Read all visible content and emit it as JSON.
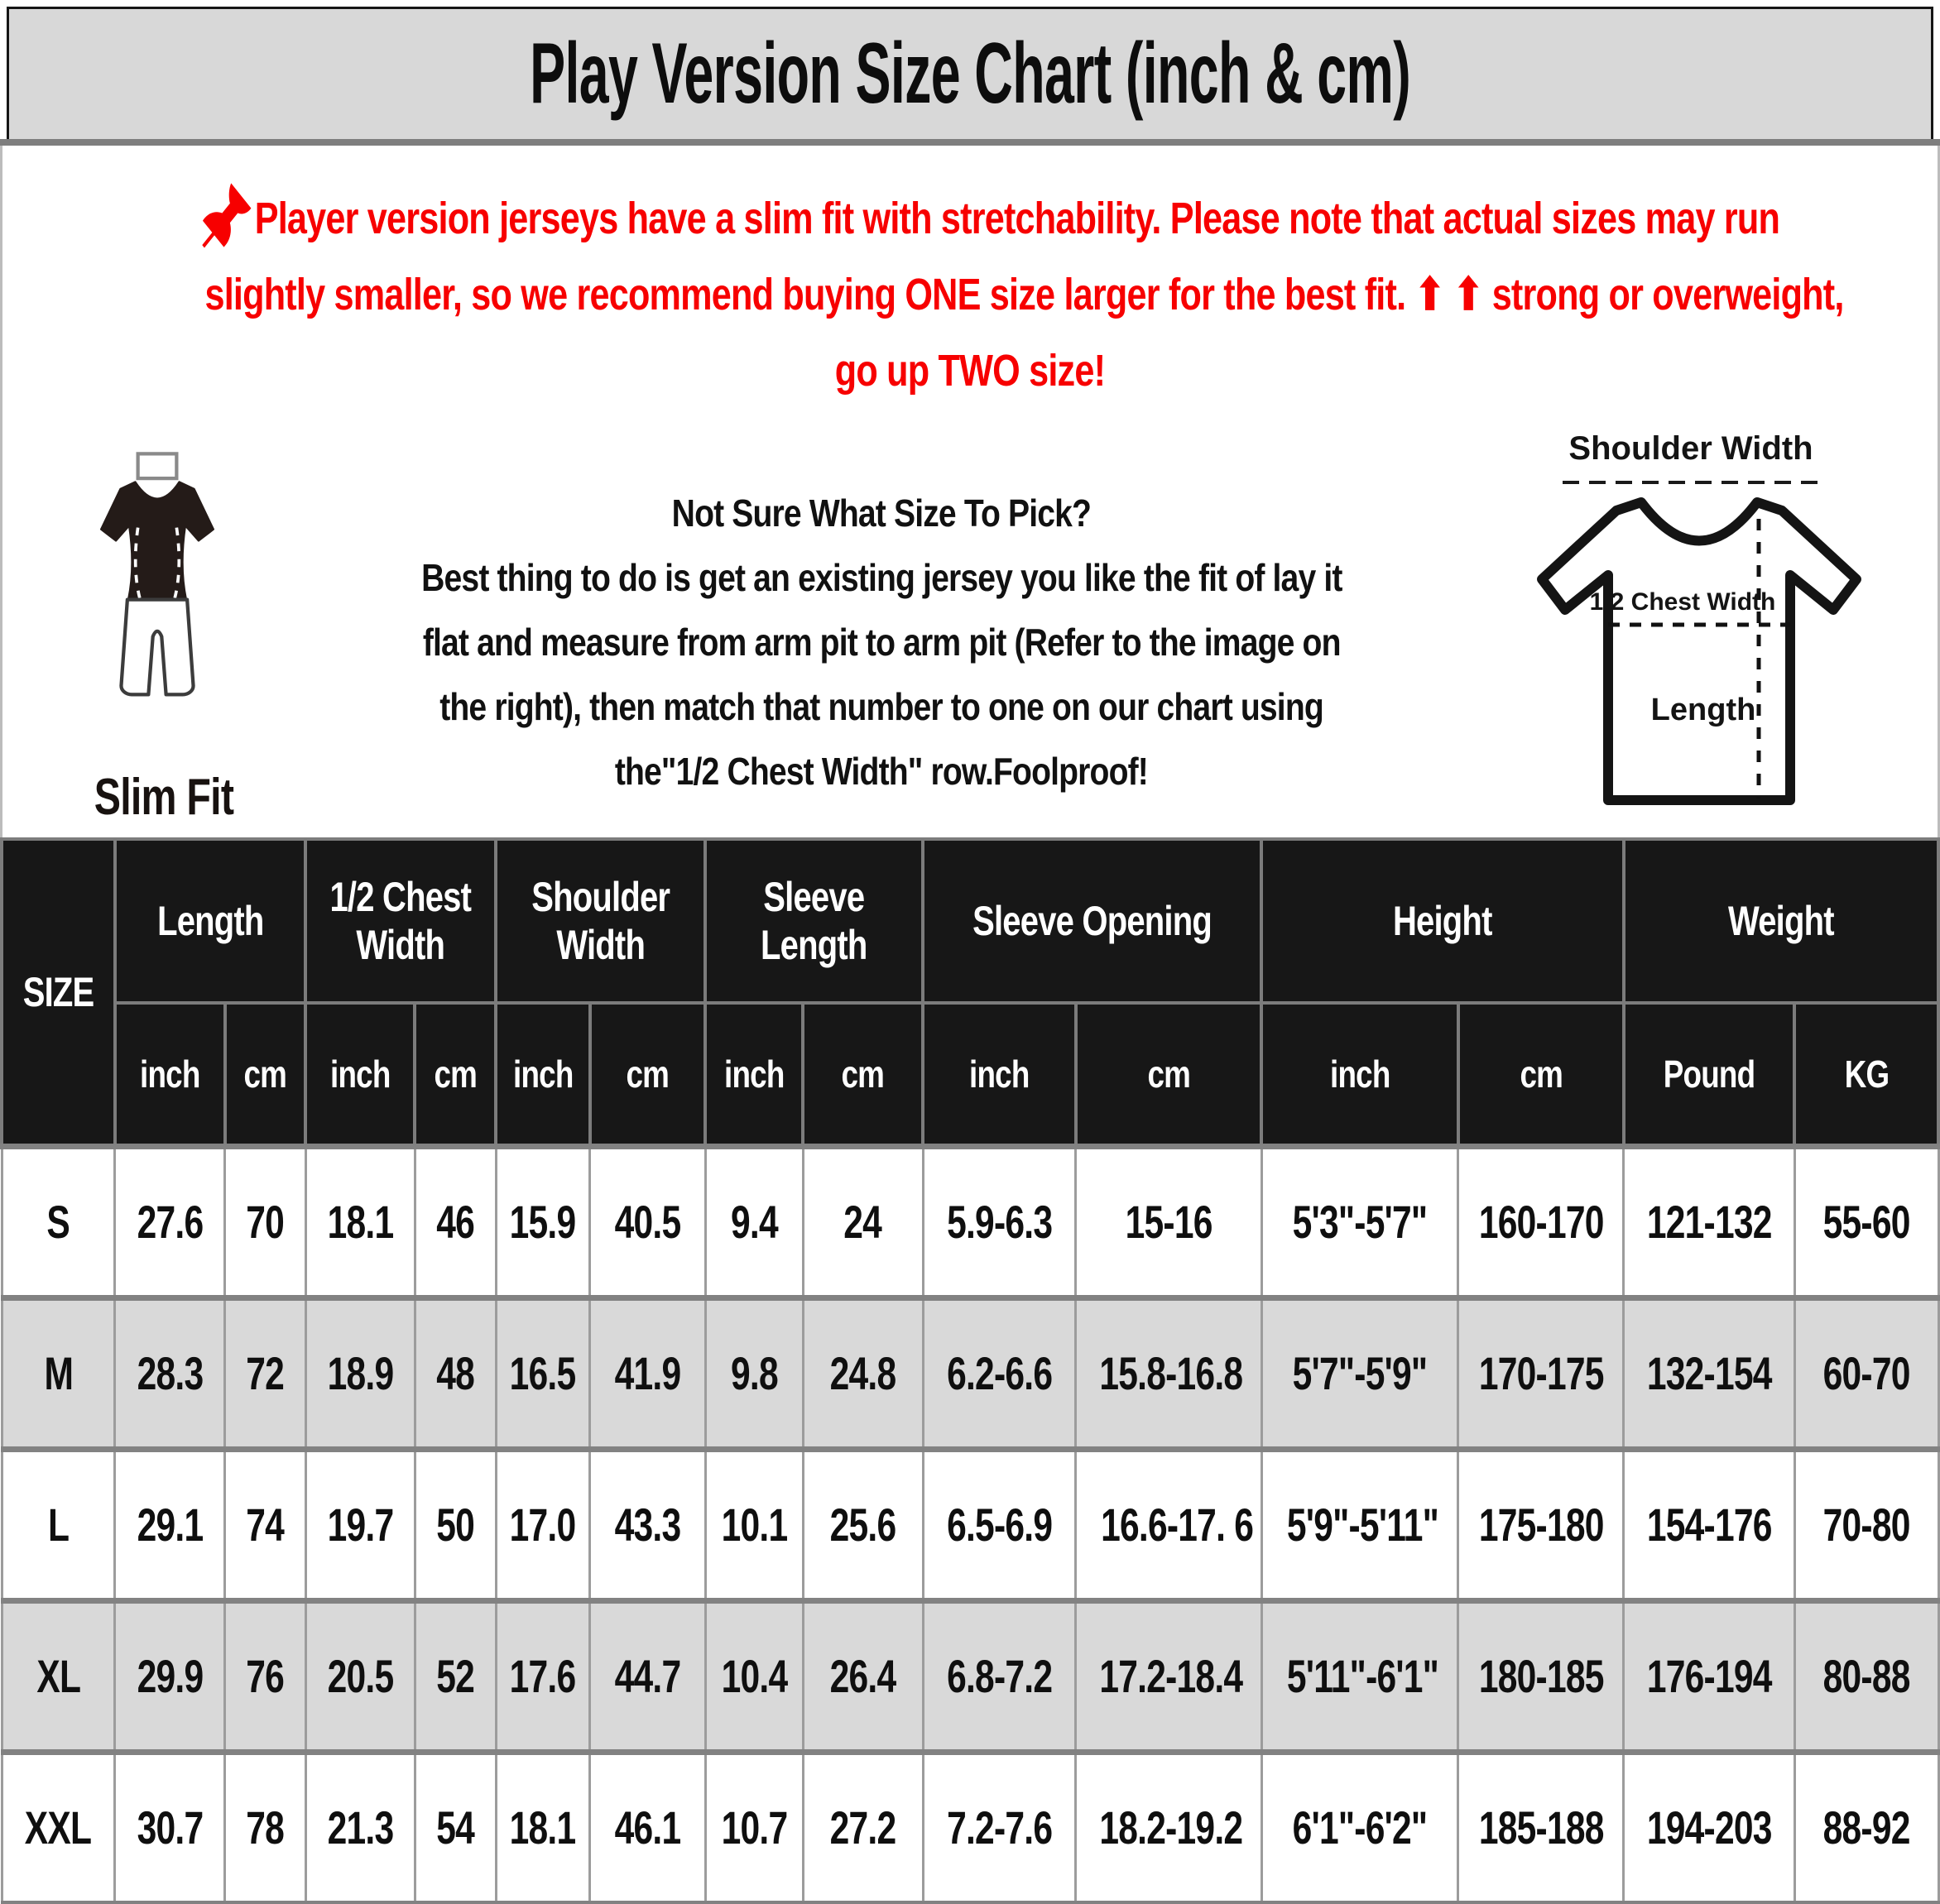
{
  "title": "Play Version Size Chart (inch & cm)",
  "notice": {
    "line1": "Player version jerseys have a slim fit with stretchability. Please note that actual sizes may run",
    "line2": "slightly smaller, so we recommend buying ONE size larger for the best fit. ⬆ ⬆ strong or overweight,",
    "line3": "go up TWO size!"
  },
  "slim_fit": {
    "label": "Slim Fit"
  },
  "guide": {
    "lines": [
      "Not Sure What Size To Pick?",
      "Best thing to do is get an existing jersey you like the fit of lay it",
      "flat and measure from arm pit to arm pit (Refer to the image on",
      "the right), then match that number to one on our chart using",
      "the\"1/2 Chest Width\" row.Foolproof!"
    ]
  },
  "diagram": {
    "shoulder_width_label": "Shoulder Width",
    "half_chest_label": "1/2 Chest Width",
    "length_label": "Length"
  },
  "table": {
    "size_header": "SIZE",
    "groups": [
      {
        "label": "Length",
        "units": [
          "inch",
          "cm"
        ]
      },
      {
        "label": "1/2 Chest Width",
        "units": [
          "inch",
          "cm"
        ]
      },
      {
        "label": "Shoulder Width",
        "units": [
          "inch",
          "cm"
        ]
      },
      {
        "label": "Sleeve Length",
        "units": [
          "inch",
          "cm"
        ]
      },
      {
        "label": "Sleeve Opening",
        "units": [
          "inch",
          "cm"
        ]
      },
      {
        "label": "Height",
        "units": [
          "inch",
          "cm"
        ]
      },
      {
        "label": "Weight",
        "units": [
          "Pound",
          "KG"
        ]
      }
    ],
    "rows": [
      {
        "size": "S",
        "values": [
          "27.6",
          "70",
          "18.1",
          "46",
          "15.9",
          "40.5",
          "9.4",
          "24",
          "5.9-6.3",
          "15-16",
          "5'3\"-5'7\"",
          "160-170",
          "121-132",
          "55-60"
        ]
      },
      {
        "size": "M",
        "values": [
          "28.3",
          "72",
          "18.9",
          "48",
          "16.5",
          "41.9",
          "9.8",
          "24.8",
          "6.2-6.6",
          "15.8-16.8",
          "5'7\"-5'9\"",
          "170-175",
          "132-154",
          "60-70"
        ]
      },
      {
        "size": "L",
        "values": [
          "29.1",
          "74",
          "19.7",
          "50",
          "17.0",
          "43.3",
          "10.1",
          "25.6",
          "6.5-6.9",
          "16.6-17. 6",
          "5'9\"-5'11\"",
          "175-180",
          "154-176",
          "70-80"
        ]
      },
      {
        "size": "XL",
        "values": [
          "29.9",
          "76",
          "20.5",
          "52",
          "17.6",
          "44.7",
          "10.4",
          "26.4",
          "6.8-7.2",
          "17.2-18.4",
          "5'11\"-6'1\"",
          "180-185",
          "176-194",
          "80-88"
        ]
      },
      {
        "size": "XXL",
        "values": [
          "30.7",
          "78",
          "21.3",
          "54",
          "18.1",
          "46.1",
          "10.7",
          "27.2",
          "7.2-7.6",
          "18.2-19.2",
          "6'1\"-6'2\"",
          "185-188",
          "194-203",
          "88-92"
        ]
      }
    ]
  },
  "colors": {
    "accent_red": "#f70000",
    "header_bg": "#171717",
    "alt_row_gray": "#d9d9d9",
    "title_bar_gray": "#d8d8d8"
  }
}
